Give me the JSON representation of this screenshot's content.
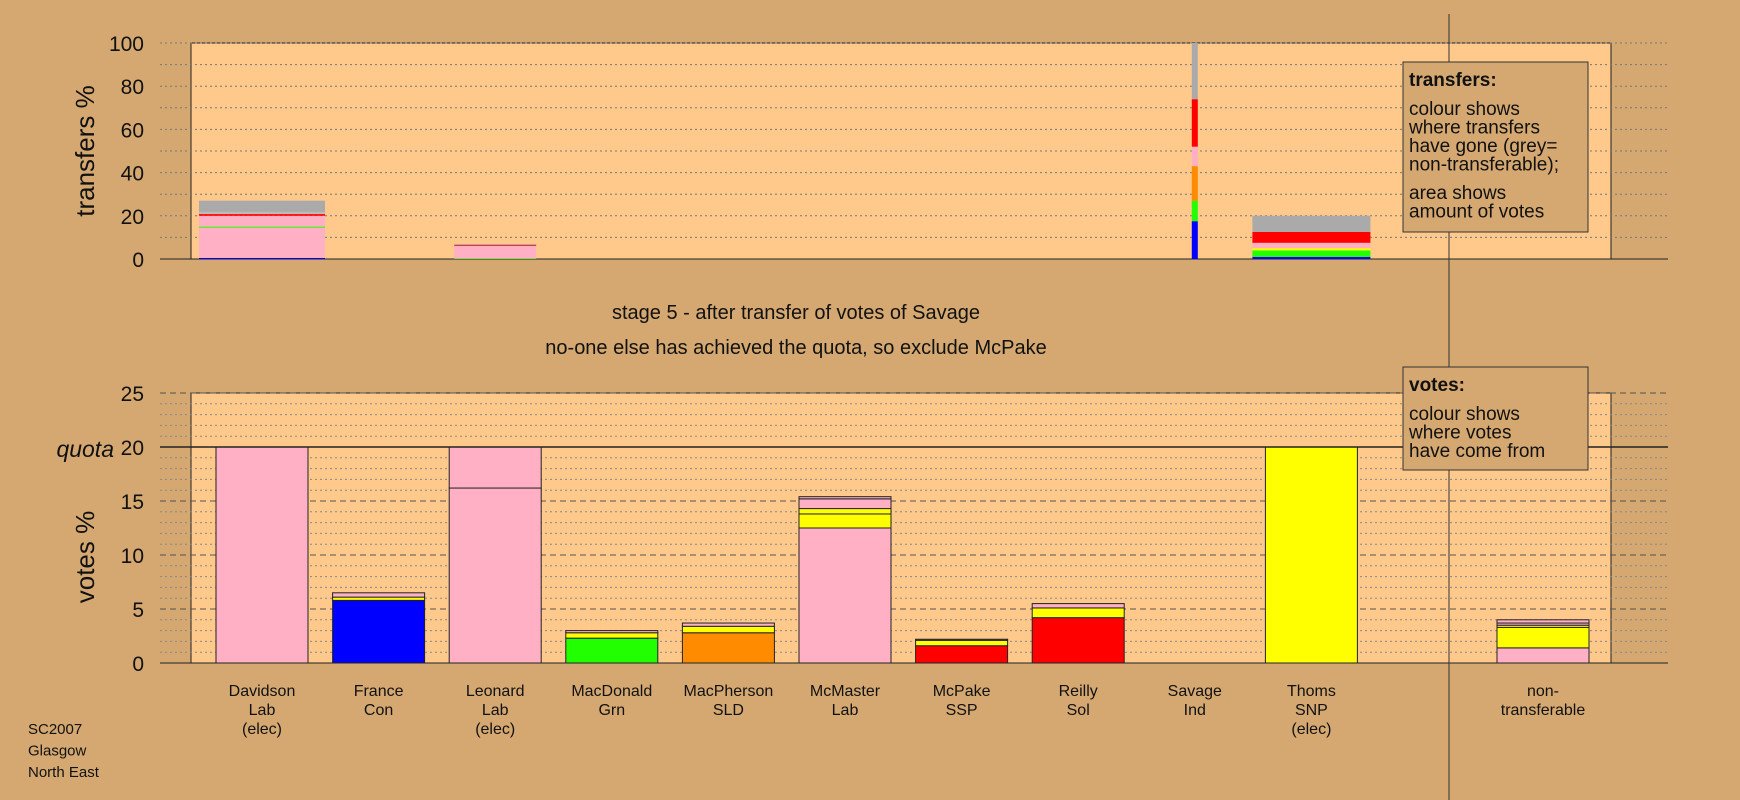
{
  "colors": {
    "page_bg": "#d4a870",
    "plot_bg": "#ffc98c",
    "Lab": "#ffb0c4",
    "Con": "#0000ff",
    "Grn": "#22ff00",
    "SLD": "#ff8c00",
    "SSP": "#ff0000",
    "Sol": "#ff0000",
    "SNP": "#ffff00",
    "Ind": "#bbbbbb",
    "nontransferable": "#aaaaaa"
  },
  "chart_data": [
    {
      "type": "bar",
      "panel": "transfers",
      "ylabel": "transfers %",
      "ylim": [
        0,
        100
      ],
      "yticks": [
        0,
        20,
        40,
        60,
        80,
        100
      ],
      "grid": true,
      "categories": [
        "Davidson",
        "France",
        "Leonard",
        "MacDonald",
        "MacPherson",
        "McMaster",
        "McPake",
        "Reilly",
        "Savage",
        "Thoms",
        "non-transferable"
      ],
      "note": "bar width shows amount of votes",
      "bars": [
        {
          "category": "Davidson",
          "segments": [
            {
              "source": "Con",
              "value": 0.5
            },
            {
              "source": "Lab",
              "value": 14.0
            },
            {
              "source": "Grn",
              "value": 0.5
            },
            {
              "source": "Lab",
              "value": 5.0
            },
            {
              "source": "SSP",
              "value": 0.8
            },
            {
              "source": "Ind",
              "value": 1.0
            },
            {
              "source": "nontransferable",
              "value": 5.2
            }
          ]
        },
        {
          "category": "Leonard",
          "segments": [
            {
              "source": "Grn",
              "value": 0.3
            },
            {
              "source": "Lab",
              "value": 5.7
            },
            {
              "source": "SSP",
              "value": 0.4
            },
            {
              "source": "nontransferable",
              "value": 0.6
            }
          ]
        },
        {
          "category": "Savage",
          "segments": [
            {
              "source": "Con",
              "value": 17.5
            },
            {
              "source": "Grn",
              "value": 9.5
            },
            {
              "source": "SLD",
              "value": 16.0
            },
            {
              "source": "Lab",
              "value": 9.0
            },
            {
              "source": "SSP",
              "value": 22.0
            },
            {
              "source": "nontransferable",
              "value": 26.0
            }
          ]
        },
        {
          "category": "Thoms",
          "segments": [
            {
              "source": "Con",
              "value": 1.0
            },
            {
              "source": "Grn",
              "value": 3.0
            },
            {
              "source": "SNP",
              "value": 1.0
            },
            {
              "source": "Lab",
              "value": 2.5
            },
            {
              "source": "SSP",
              "value": 5.0
            },
            {
              "source": "nontransferable",
              "value": 7.5
            }
          ]
        }
      ],
      "legend": {
        "title": "transfers:",
        "lines": [
          "colour shows",
          "where transfers",
          "have gone (grey=",
          "non-transferable);"
        ],
        "lines2": [
          "area shows",
          "amount of votes"
        ]
      }
    },
    {
      "type": "bar",
      "panel": "votes",
      "ylabel": "votes %",
      "ylim": [
        0,
        25
      ],
      "yticks": [
        0,
        5,
        10,
        15,
        20,
        25
      ],
      "quota_label": "quota",
      "quota": 20,
      "grid": true,
      "categories": [
        "Davidson",
        "France",
        "Leonard",
        "MacDonald",
        "MacPherson",
        "McMaster",
        "McPake",
        "Reilly",
        "Savage",
        "Thoms",
        "non-transferable"
      ],
      "bars": [
        {
          "category": "Davidson",
          "segments": [
            {
              "source": "Lab",
              "value": 20.0
            }
          ]
        },
        {
          "category": "France",
          "segments": [
            {
              "source": "Con",
              "value": 5.8
            },
            {
              "source": "SNP",
              "value": 0.3
            },
            {
              "source": "Lab",
              "value": 0.4
            }
          ]
        },
        {
          "category": "Leonard",
          "segments": [
            {
              "source": "Lab",
              "value": 16.2
            },
            {
              "source": "Lab",
              "value": 3.8
            }
          ]
        },
        {
          "category": "MacDonald",
          "segments": [
            {
              "source": "Grn",
              "value": 2.3
            },
            {
              "source": "SNP",
              "value": 0.5
            },
            {
              "source": "Lab",
              "value": 0.2
            }
          ]
        },
        {
          "category": "MacPherson",
          "segments": [
            {
              "source": "SLD",
              "value": 2.8
            },
            {
              "source": "SNP",
              "value": 0.6
            },
            {
              "source": "Lab",
              "value": 0.3
            }
          ]
        },
        {
          "category": "McMaster",
          "segments": [
            {
              "source": "Lab",
              "value": 12.5
            },
            {
              "source": "SNP",
              "value": 1.3
            },
            {
              "source": "SNP",
              "value": 0.5
            },
            {
              "source": "Lab",
              "value": 0.9
            },
            {
              "source": "Lab",
              "value": 0.2
            }
          ]
        },
        {
          "category": "McPake",
          "segments": [
            {
              "source": "SSP",
              "value": 1.6
            },
            {
              "source": "SNP",
              "value": 0.5
            },
            {
              "source": "Lab",
              "value": 0.1
            }
          ]
        },
        {
          "category": "Reilly",
          "segments": [
            {
              "source": "SSP",
              "value": 4.2
            },
            {
              "source": "SNP",
              "value": 0.9
            },
            {
              "source": "Lab",
              "value": 0.4
            }
          ]
        },
        {
          "category": "Savage",
          "segments": []
        },
        {
          "category": "Thoms",
          "segments": [
            {
              "source": "SNP",
              "value": 20.0
            }
          ]
        },
        {
          "category": "non-transferable",
          "segments": [
            {
              "source": "Lab",
              "value": 1.4
            },
            {
              "source": "SNP",
              "value": 1.9
            },
            {
              "source": "SNP",
              "value": 0.2
            },
            {
              "source": "Lab",
              "value": 0.2
            },
            {
              "source": "Lab",
              "value": 0.3
            }
          ]
        }
      ],
      "legend": {
        "title": "votes:",
        "lines": [
          "colour shows",
          "where votes",
          "have come from"
        ]
      }
    }
  ],
  "candidates": [
    {
      "lines": [
        "Davidson",
        "Lab",
        "(elec)"
      ]
    },
    {
      "lines": [
        "France",
        "Con"
      ]
    },
    {
      "lines": [
        "Leonard",
        "Lab",
        "(elec)"
      ]
    },
    {
      "lines": [
        "MacDonald",
        "Grn"
      ]
    },
    {
      "lines": [
        "MacPherson",
        "SLD"
      ]
    },
    {
      "lines": [
        "McMaster",
        "Lab"
      ]
    },
    {
      "lines": [
        "McPake",
        "SSP"
      ]
    },
    {
      "lines": [
        "Reilly",
        "Sol"
      ]
    },
    {
      "lines": [
        "Savage",
        "Ind"
      ]
    },
    {
      "lines": [
        "Thoms",
        "SNP",
        "(elec)"
      ]
    },
    {
      "lines": [
        "non-",
        "transferable"
      ]
    }
  ],
  "stage": {
    "line1": "stage 5 - after transfer of votes of Savage",
    "line2": "no-one else has achieved the quota, so exclude McPake"
  },
  "footer": {
    "lines": [
      "SC2007",
      "Glasgow",
      "North East"
    ]
  }
}
